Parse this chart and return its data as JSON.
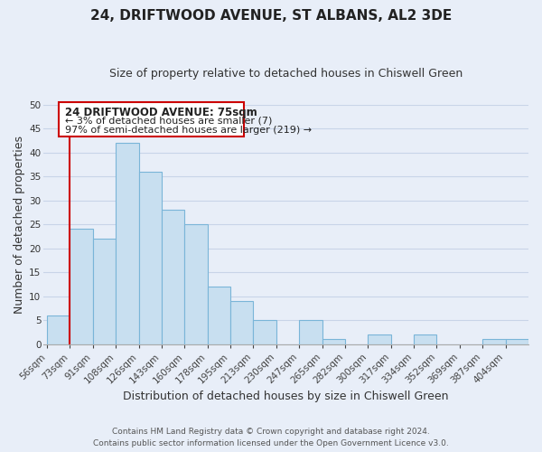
{
  "title": "24, DRIFTWOOD AVENUE, ST ALBANS, AL2 3DE",
  "subtitle": "Size of property relative to detached houses in Chiswell Green",
  "xlabel": "Distribution of detached houses by size in Chiswell Green",
  "ylabel": "Number of detached properties",
  "footer_line1": "Contains HM Land Registry data © Crown copyright and database right 2024.",
  "footer_line2": "Contains public sector information licensed under the Open Government Licence v3.0.",
  "bin_labels": [
    "56sqm",
    "73sqm",
    "91sqm",
    "108sqm",
    "126sqm",
    "143sqm",
    "160sqm",
    "178sqm",
    "195sqm",
    "213sqm",
    "230sqm",
    "247sqm",
    "265sqm",
    "282sqm",
    "300sqm",
    "317sqm",
    "334sqm",
    "352sqm",
    "369sqm",
    "387sqm",
    "404sqm"
  ],
  "bar_heights": [
    6,
    24,
    22,
    42,
    36,
    28,
    25,
    12,
    9,
    5,
    0,
    5,
    1,
    0,
    2,
    0,
    2,
    0,
    0,
    1,
    1
  ],
  "bar_color": "#c8dff0",
  "bar_edge_color": "#7ab5d8",
  "vline_color": "#cc0000",
  "ylim": [
    0,
    50
  ],
  "yticks": [
    0,
    5,
    10,
    15,
    20,
    25,
    30,
    35,
    40,
    45,
    50
  ],
  "annotation_title": "24 DRIFTWOOD AVENUE: 75sqm",
  "annotation_line1": "← 3% of detached houses are smaller (7)",
  "annotation_line2": "97% of semi-detached houses are larger (219) →",
  "annotation_box_color": "#ffffff",
  "annotation_box_edge": "#cc0000",
  "grid_color": "#c8d4e8",
  "bg_color": "#e8eef8",
  "title_fontsize": 11,
  "subtitle_fontsize": 9,
  "axis_label_fontsize": 9,
  "tick_fontsize": 7.5,
  "footer_fontsize": 6.5
}
